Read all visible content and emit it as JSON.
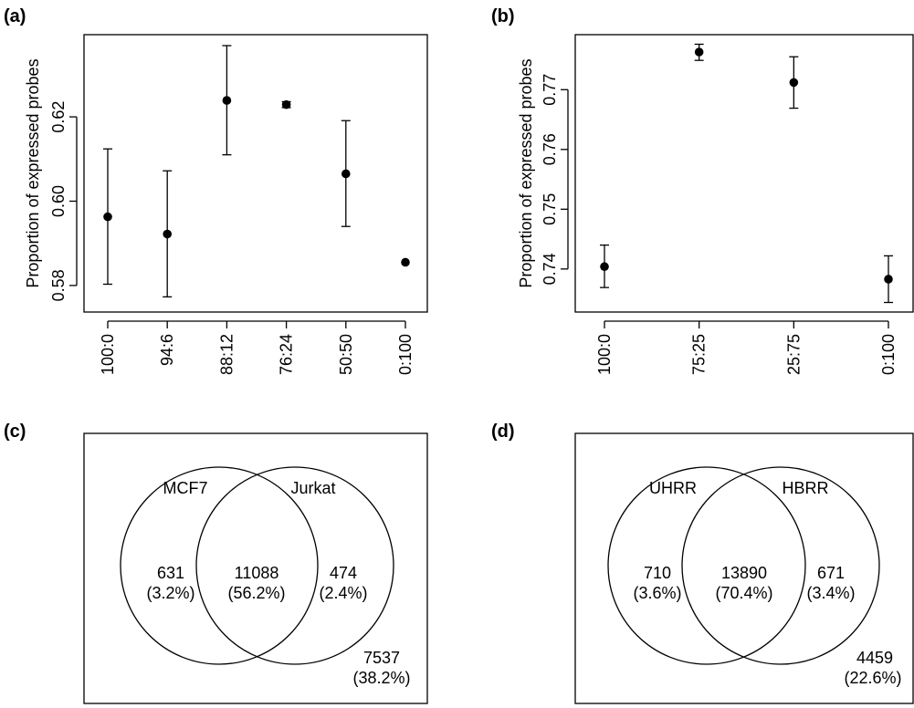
{
  "chart_data": [
    {
      "panel": "(a)",
      "type": "scatter",
      "error_bars": true,
      "ylabel": "Proportion of expressed probes",
      "xlabel": "",
      "categories": [
        "100:0",
        "94:6",
        "88:12",
        "76:24",
        "50:50",
        "0:100"
      ],
      "values": [
        0.5963,
        0.5922,
        0.6239,
        0.6229,
        0.6065,
        0.5855
      ],
      "lower": [
        0.5803,
        0.5773,
        0.611,
        0.6222,
        0.594,
        0.5855
      ],
      "upper": [
        0.6124,
        0.6072,
        0.6369,
        0.6236,
        0.6191,
        0.5855
      ],
      "ylim": [
        0.5737,
        0.6395
      ],
      "yticks": [
        0.58,
        0.6,
        0.62
      ],
      "ytick_labels": [
        "0.58",
        "0.60",
        "0.62"
      ]
    },
    {
      "panel": "(b)",
      "type": "scatter",
      "error_bars": true,
      "ylabel": "Proportion of expressed probes",
      "xlabel": "",
      "categories": [
        "100:0",
        "75:25",
        "25:75",
        "0:100"
      ],
      "values": [
        0.7404,
        0.7763,
        0.7712,
        0.7383
      ],
      "lower": [
        0.7369,
        0.7749,
        0.7669,
        0.7344
      ],
      "upper": [
        0.744,
        0.7776,
        0.7755,
        0.7422
      ],
      "ylim": [
        0.7328,
        0.7792
      ],
      "yticks": [
        0.74,
        0.75,
        0.76,
        0.77
      ],
      "ytick_labels": [
        "0.74",
        "0.75",
        "0.76",
        "0.77"
      ]
    }
  ],
  "venns": [
    {
      "panel": "(c)",
      "left_label": "MCF7",
      "right_label": "Jurkat",
      "left_only": {
        "count": "631",
        "pct": "(3.2%)"
      },
      "both": {
        "count": "11088",
        "pct": "(56.2%)"
      },
      "right_only": {
        "count": "474",
        "pct": "(2.4%)"
      },
      "neither": {
        "count": "7537",
        "pct": "(38.2%)"
      }
    },
    {
      "panel": "(d)",
      "left_label": "UHRR",
      "right_label": "HBRR",
      "left_only": {
        "count": "710",
        "pct": "(3.6%)"
      },
      "both": {
        "count": "13890",
        "pct": "(70.4%)"
      },
      "right_only": {
        "count": "671",
        "pct": "(3.4%)"
      },
      "neither": {
        "count": "4459",
        "pct": "(22.6%)"
      }
    }
  ]
}
